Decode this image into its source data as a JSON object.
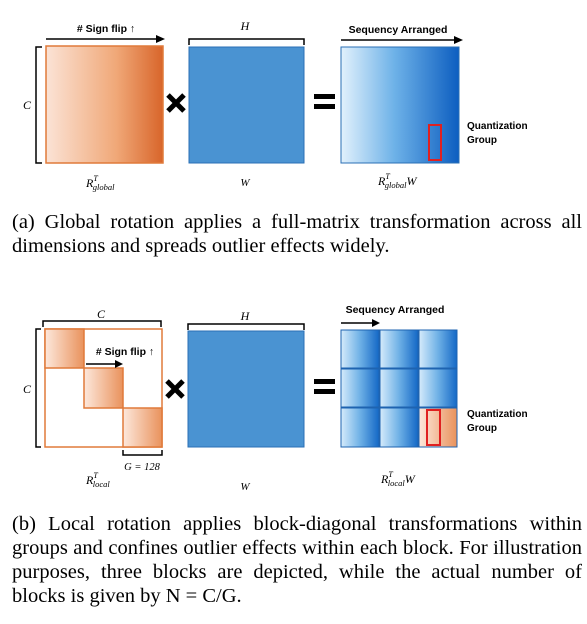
{
  "panel_a": {
    "label_sign_flip": "# Sign flip ↑",
    "label_h": "H",
    "label_seq": "Sequency Arranged",
    "label_c": "C",
    "label_quant_1": "Quantization",
    "label_quant_2": "Group",
    "eq_r": "R",
    "eq_t": "T",
    "eq_sub": "global",
    "eq_w": "W",
    "label_w": "W",
    "caption": "(a) Global rotation applies a full-matrix transformation across all dimensions and spreads outlier effects widely."
  },
  "panel_b": {
    "label_c_top": "C",
    "label_sign_flip": "# Sign flip ↑",
    "label_h": "H",
    "label_seq": "Sequency Arranged",
    "label_c": "C",
    "label_g": "G = 128",
    "label_quant_1": "Quantization",
    "label_quant_2": "Group",
    "eq_r": "R",
    "eq_t": "T",
    "eq_sub": "local",
    "eq_w": "W",
    "label_w": "W",
    "caption": "(b) Local rotation applies block-diagonal transformations within groups and confines outlier effects within each block. For illustration purposes, three blocks are depicted, while the actual number of blocks is given by N = C/G."
  },
  "colors": {
    "orange": "#e07a3a",
    "blue": "#4a90d0",
    "blue_dark": "#1565c0",
    "red": "#e02020"
  }
}
